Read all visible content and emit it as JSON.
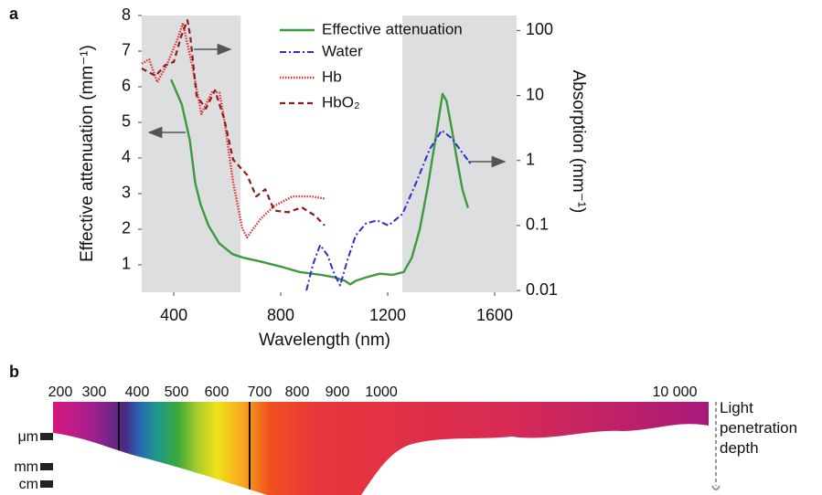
{
  "chart_data": {
    "type": "line",
    "panel_label": "a",
    "xlabel": "Wavelength (nm)",
    "ylabel": "Effective attenuation (mm⁻¹)",
    "y2label": "Absorption (mm⁻¹)",
    "xlim": [
      280,
      1682
    ],
    "xticks": [
      400,
      800,
      1200,
      1600
    ],
    "ylim": [
      0.23,
      8
    ],
    "yticks": [
      1,
      2,
      3,
      4,
      5,
      6,
      7,
      8
    ],
    "y2lim": [
      0.0094,
      170
    ],
    "y2ticks": [
      100,
      10,
      1,
      0.1,
      0.01
    ],
    "y2scale": "log",
    "shaded_regions": [
      [
        280,
        650
      ],
      [
        1255,
        1682
      ]
    ],
    "shade_color": "#dcdedf",
    "series": [
      {
        "name": "Effective attenuation",
        "color": "#3d9a3d",
        "style": "solid",
        "axis": "y",
        "x": [
          390,
          430,
          460,
          480,
          500,
          530,
          570,
          620,
          660,
          720,
          800,
          870,
          950,
          1000,
          1040,
          1060,
          1080,
          1120,
          1170,
          1220,
          1260,
          1290,
          1320,
          1350,
          1380,
          1405,
          1420,
          1440,
          1460,
          1480,
          1500
        ],
        "values": [
          6.2,
          5.5,
          4.5,
          3.3,
          2.7,
          2.1,
          1.6,
          1.3,
          1.2,
          1.1,
          0.95,
          0.8,
          0.72,
          0.65,
          0.55,
          0.45,
          0.55,
          0.65,
          0.75,
          0.72,
          0.8,
          1.2,
          2.0,
          3.2,
          4.6,
          5.8,
          5.6,
          4.8,
          3.9,
          3.1,
          2.6
        ]
      },
      {
        "name": "Water",
        "color": "#2b2bd8",
        "style": "dash-dot",
        "axis": "y2",
        "x": [
          896,
          920,
          947,
          975,
          1000,
          1022,
          1050,
          1080,
          1118,
          1160,
          1203,
          1255,
          1306,
          1357,
          1402,
          1440,
          1480,
          1511
        ],
        "values": [
          0.01,
          0.025,
          0.05,
          0.035,
          0.018,
          0.012,
          0.03,
          0.07,
          0.107,
          0.12,
          0.1,
          0.15,
          0.45,
          1.5,
          2.9,
          2.2,
          1.3,
          0.88
        ]
      },
      {
        "name": "Hb",
        "color": "#e53333",
        "style": "dotted",
        "axis": "y2",
        "x": [
          280,
          308,
          338,
          373,
          417,
          434,
          468,
          503,
          544,
          571,
          588,
          622,
          656,
          674,
          725,
          776,
          844,
          913,
          964
        ],
        "values": [
          31,
          36,
          16,
          29,
          80,
          130,
          30,
          5.2,
          11.6,
          11,
          4.4,
          0.46,
          0.09,
          0.066,
          0.127,
          0.2,
          0.28,
          0.28,
          0.26
        ]
      },
      {
        "name": "HbO₂",
        "color": "#8c1c1c",
        "style": "dashed",
        "axis": "y2",
        "x": [
          280,
          332,
          366,
          400,
          427,
          451,
          462,
          485,
          520,
          554,
          588,
          622,
          674,
          708,
          742,
          776,
          827,
          879,
          930,
          964
        ],
        "values": [
          26,
          20,
          29,
          33,
          80,
          144,
          80,
          9.9,
          6.3,
          12,
          4.4,
          1.03,
          0.6,
          0.28,
          0.36,
          0.17,
          0.16,
          0.19,
          0.14,
          0.1
        ]
      }
    ]
  },
  "spectrum_panel": {
    "panel_label": "b",
    "wavelength_labels": [
      "200",
      "300",
      "400",
      "500",
      "600",
      "700",
      "800",
      "900",
      "1000",
      "10 000"
    ],
    "depth_labels": [
      "μm",
      "mm",
      "cm"
    ],
    "caption": "Light penetration depth"
  }
}
